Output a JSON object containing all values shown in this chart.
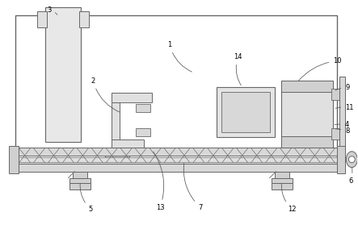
{
  "lc": "#666666",
  "lw": 0.7,
  "fig_w": 4.43,
  "fig_h": 2.84,
  "dpi": 100
}
